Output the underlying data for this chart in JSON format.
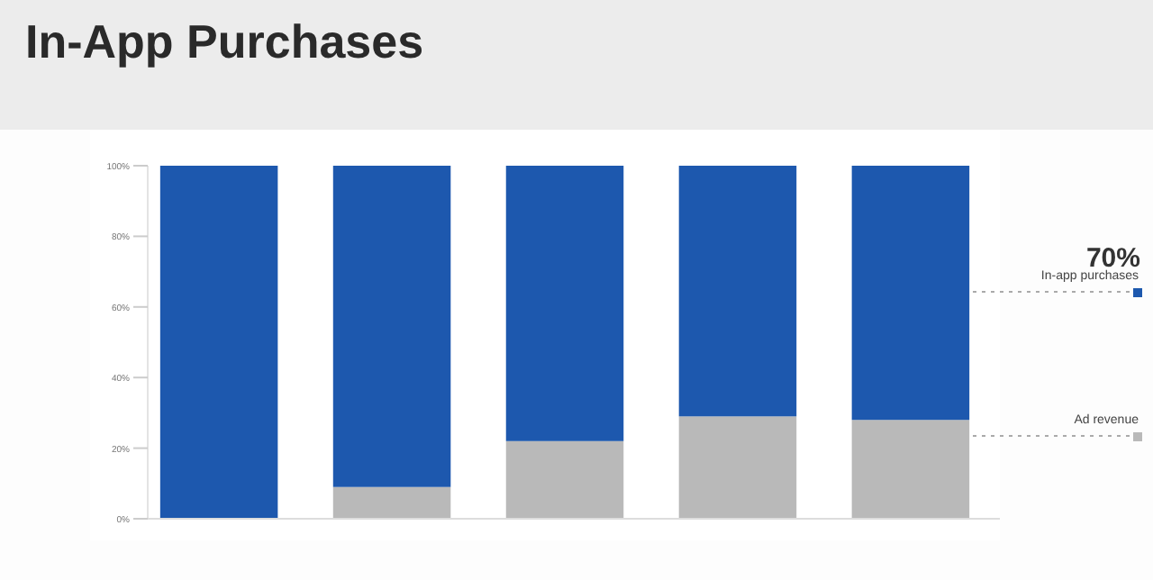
{
  "chart_data": {
    "type": "bar",
    "title": "In-App Purchases",
    "stacked": true,
    "categories": [
      null,
      null,
      null,
      null,
      null
    ],
    "series": [
      {
        "name": "Ad revenue",
        "color": "#b9b9b9",
        "values": [
          0,
          9,
          22,
          29,
          28
        ]
      },
      {
        "name": "In-app purchases",
        "color": "#1d58ae",
        "values": [
          100,
          91,
          78,
          71,
          72
        ]
      }
    ],
    "ylim": [
      0,
      100
    ],
    "yticks": [
      {
        "value": 0,
        "label": "0%"
      },
      {
        "value": 20,
        "label": "20%"
      },
      {
        "value": 40,
        "label": "40%"
      },
      {
        "value": 60,
        "label": "60%"
      },
      {
        "value": 80,
        "label": "80%"
      },
      {
        "value": 100,
        "label": "100%"
      }
    ],
    "annotations": [
      "70%"
    ],
    "legend": "right",
    "grid": false
  }
}
